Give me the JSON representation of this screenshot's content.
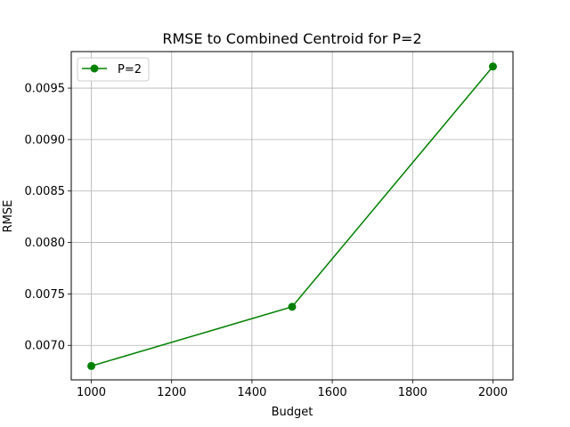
{
  "chart_data": {
    "type": "line",
    "title": "RMSE to Combined Centroid for P=2",
    "xlabel": "Budget",
    "ylabel": "RMSE",
    "xlim": [
      950,
      2050
    ],
    "ylim": [
      0.006665,
      0.009855
    ],
    "xticks": [
      1000,
      1200,
      1400,
      1600,
      1800,
      2000
    ],
    "xtick_labels": [
      "1000",
      "1200",
      "1400",
      "1600",
      "1800",
      "2000"
    ],
    "yticks": [
      0.007,
      0.0075,
      0.008,
      0.0085,
      0.009,
      0.0095
    ],
    "ytick_labels": [
      "0.0070",
      "0.0075",
      "0.0080",
      "0.0085",
      "0.0090",
      "0.0095"
    ],
    "grid": true,
    "legend_position": "upper-left",
    "series": [
      {
        "name": "P=2",
        "color": "#008000",
        "marker": "circle",
        "x": [
          1000,
          1500,
          2000
        ],
        "y": [
          0.0068,
          0.007375,
          0.00971
        ]
      }
    ]
  }
}
